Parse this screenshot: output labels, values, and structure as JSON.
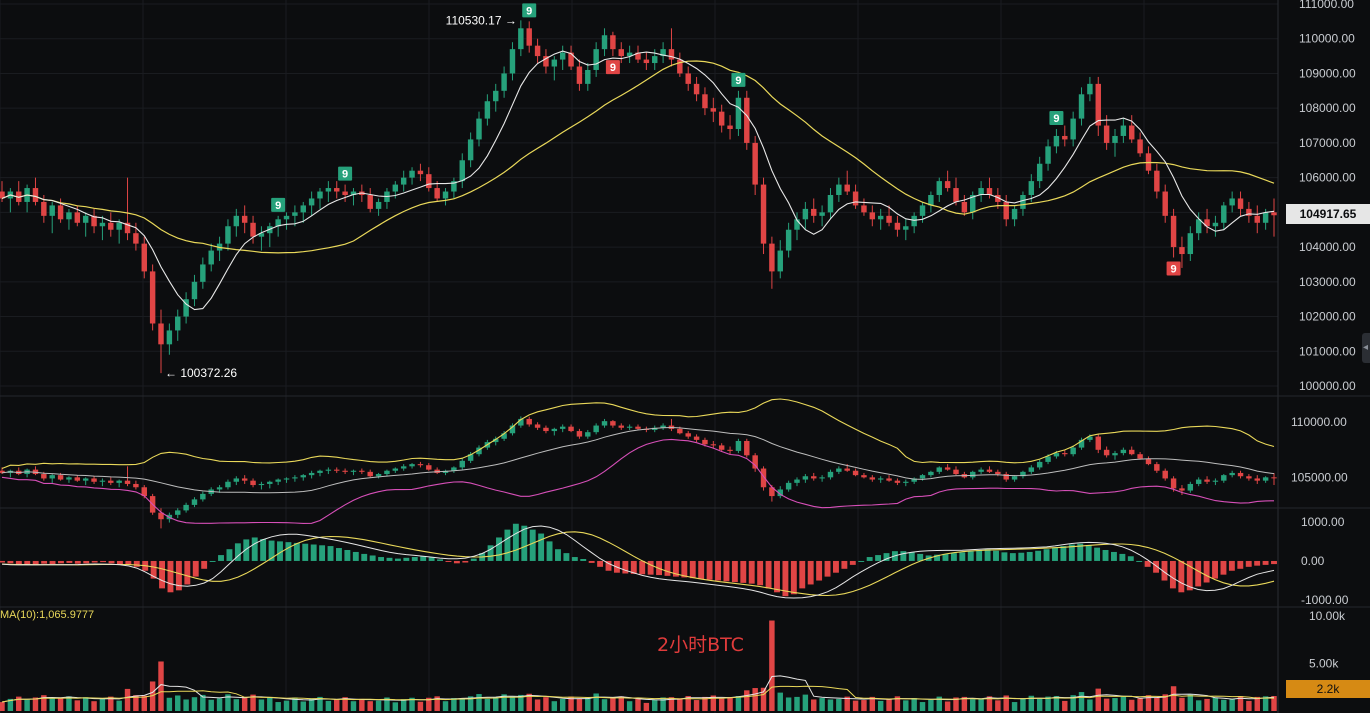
{
  "chart_data": {
    "type": "candlestick",
    "main": {
      "y_ticks": [
        "111000.00",
        "110000.00",
        "109000.00",
        "108000.00",
        "107000.00",
        "106000.00",
        "105000.00",
        "104000.00",
        "103000.00",
        "102000.00",
        "101000.00",
        "100000.00"
      ],
      "ylim": [
        99600,
        111200
      ],
      "last_price": "104917.65",
      "high_label": "110530.17",
      "low_label": "100372.26",
      "td_markers": [
        "9",
        "9",
        "9",
        "9",
        "9",
        "9",
        "9"
      ],
      "candles": [
        [
          105600,
          105900,
          105300,
          105400
        ],
        [
          105400,
          105700,
          105000,
          105600
        ],
        [
          105600,
          105900,
          105200,
          105300
        ],
        [
          105300,
          105800,
          105000,
          105700
        ],
        [
          105700,
          106000,
          105200,
          105300
        ],
        [
          105300,
          105500,
          104700,
          104900
        ],
        [
          104900,
          105300,
          104400,
          105200
        ],
        [
          105200,
          105400,
          104700,
          104800
        ],
        [
          104800,
          105100,
          104500,
          105000
        ],
        [
          105000,
          105200,
          104600,
          104700
        ],
        [
          104700,
          105000,
          104300,
          104900
        ],
        [
          104900,
          105100,
          104400,
          104600
        ],
        [
          104600,
          104900,
          104200,
          104700
        ],
        [
          104700,
          105000,
          104300,
          104500
        ],
        [
          104500,
          104800,
          104100,
          104700
        ],
        [
          104700,
          106000,
          104200,
          104400
        ],
        [
          104400,
          104700,
          103900,
          104100
        ],
        [
          104100,
          104300,
          103100,
          103300
        ],
        [
          103300,
          103500,
          101600,
          101800
        ],
        [
          101800,
          102200,
          100370,
          101200
        ],
        [
          101200,
          101800,
          100900,
          101600
        ],
        [
          101600,
          102200,
          101300,
          102000
        ],
        [
          102000,
          102700,
          101800,
          102500
        ],
        [
          102500,
          103200,
          102300,
          103000
        ],
        [
          103000,
          103700,
          102800,
          103500
        ],
        [
          103500,
          104100,
          103300,
          103900
        ],
        [
          103900,
          104300,
          103600,
          104100
        ],
        [
          104100,
          104800,
          103900,
          104600
        ],
        [
          104600,
          105100,
          104300,
          104900
        ],
        [
          104900,
          105200,
          104400,
          104700
        ],
        [
          104700,
          104900,
          104100,
          104300
        ],
        [
          104300,
          104600,
          103900,
          104400
        ],
        [
          104400,
          104700,
          104000,
          104600
        ],
        [
          104600,
          104900,
          104300,
          104800
        ],
        [
          104800,
          105000,
          104500,
          104900
        ],
        [
          104900,
          105200,
          104600,
          105000
        ],
        [
          105000,
          105300,
          104700,
          105200
        ],
        [
          105200,
          105600,
          104900,
          105400
        ],
        [
          105400,
          105700,
          105100,
          105600
        ],
        [
          105600,
          105900,
          105300,
          105700
        ],
        [
          105700,
          105900,
          105400,
          105600
        ],
        [
          105600,
          105800,
          105300,
          105500
        ],
        [
          105500,
          105700,
          105200,
          105600
        ],
        [
          105600,
          105800,
          105300,
          105500
        ],
        [
          105500,
          105700,
          105000,
          105100
        ],
        [
          105100,
          105400,
          104900,
          105300
        ],
        [
          105300,
          105700,
          105100,
          105600
        ],
        [
          105600,
          105900,
          105400,
          105800
        ],
        [
          105800,
          106200,
          105600,
          106000
        ],
        [
          106000,
          106300,
          105800,
          106200
        ],
        [
          106200,
          106400,
          105900,
          106100
        ],
        [
          106100,
          106300,
          105600,
          105700
        ],
        [
          105700,
          105900,
          105300,
          105400
        ],
        [
          105400,
          105700,
          105200,
          105600
        ],
        [
          105600,
          106000,
          105400,
          105900
        ],
        [
          105900,
          106700,
          105700,
          106500
        ],
        [
          106500,
          107300,
          106300,
          107100
        ],
        [
          107100,
          107900,
          106900,
          107700
        ],
        [
          107700,
          108400,
          107500,
          108200
        ],
        [
          108200,
          108700,
          107900,
          108500
        ],
        [
          108500,
          109200,
          108300,
          109000
        ],
        [
          109000,
          109900,
          108800,
          109700
        ],
        [
          109700,
          110530,
          109500,
          110300
        ],
        [
          110300,
          110500,
          109600,
          109800
        ],
        [
          109800,
          110000,
          109300,
          109500
        ],
        [
          109500,
          109700,
          109000,
          109200
        ],
        [
          109200,
          109500,
          108800,
          109400
        ],
        [
          109400,
          109800,
          109100,
          109600
        ],
        [
          109600,
          109800,
          109100,
          109200
        ],
        [
          109200,
          109400,
          108500,
          108700
        ],
        [
          108700,
          109300,
          108500,
          109100
        ],
        [
          109100,
          109900,
          108900,
          109700
        ],
        [
          109700,
          110300,
          109500,
          110100
        ],
        [
          110100,
          110200,
          109500,
          109700
        ],
        [
          109700,
          109900,
          109300,
          109500
        ],
        [
          109500,
          109800,
          109300,
          109600
        ],
        [
          109600,
          109800,
          109300,
          109400
        ],
        [
          109400,
          109600,
          109100,
          109300
        ],
        [
          109300,
          109700,
          109100,
          109500
        ],
        [
          109500,
          109900,
          109300,
          109700
        ],
        [
          109700,
          110300,
          109200,
          109400
        ],
        [
          109400,
          109600,
          108900,
          109000
        ],
        [
          109000,
          109200,
          108500,
          108700
        ],
        [
          108700,
          108900,
          108200,
          108400
        ],
        [
          108400,
          108600,
          107800,
          108000
        ],
        [
          108000,
          108300,
          107600,
          107900
        ],
        [
          107900,
          108100,
          107300,
          107500
        ],
        [
          107500,
          107800,
          107100,
          107400
        ],
        [
          107400,
          108500,
          107200,
          108300
        ],
        [
          108300,
          108500,
          106800,
          107000
        ],
        [
          107000,
          107200,
          105500,
          105800
        ],
        [
          105800,
          106000,
          103800,
          104100
        ],
        [
          104100,
          104300,
          102800,
          103300
        ],
        [
          103300,
          104200,
          103100,
          103900
        ],
        [
          103900,
          104700,
          103700,
          104500
        ],
        [
          104500,
          105000,
          104200,
          104800
        ],
        [
          104800,
          105300,
          104500,
          105100
        ],
        [
          105100,
          105400,
          104700,
          104900
        ],
        [
          104900,
          105200,
          104600,
          105000
        ],
        [
          105000,
          105700,
          104800,
          105500
        ],
        [
          105500,
          106000,
          105300,
          105800
        ],
        [
          105800,
          106200,
          105500,
          105600
        ],
        [
          105600,
          105800,
          105100,
          105200
        ],
        [
          105200,
          105400,
          104900,
          105000
        ],
        [
          105000,
          105200,
          104600,
          104800
        ],
        [
          104800,
          105100,
          104500,
          104900
        ],
        [
          104900,
          105200,
          104600,
          104700
        ],
        [
          104700,
          104900,
          104300,
          104500
        ],
        [
          104500,
          104800,
          104200,
          104600
        ],
        [
          104600,
          105000,
          104400,
          104900
        ],
        [
          104900,
          105300,
          104700,
          105200
        ],
        [
          105200,
          105600,
          105000,
          105500
        ],
        [
          105500,
          106000,
          105300,
          105900
        ],
        [
          105900,
          106200,
          105600,
          105700
        ],
        [
          105700,
          106000,
          105200,
          105300
        ],
        [
          105300,
          105500,
          104900,
          105000
        ],
        [
          105000,
          105600,
          104800,
          105500
        ],
        [
          105500,
          105900,
          105300,
          105700
        ],
        [
          105700,
          106000,
          105400,
          105500
        ],
        [
          105500,
          105700,
          105100,
          105300
        ],
        [
          105300,
          105500,
          104600,
          104800
        ],
        [
          104800,
          105200,
          104600,
          105100
        ],
        [
          105100,
          105600,
          104900,
          105500
        ],
        [
          105500,
          106100,
          105300,
          105900
        ],
        [
          105900,
          106600,
          105700,
          106400
        ],
        [
          106400,
          107100,
          106200,
          106900
        ],
        [
          106900,
          107400,
          106700,
          107200
        ],
        [
          107200,
          107500,
          106900,
          107100
        ],
        [
          107100,
          107900,
          106900,
          107700
        ],
        [
          107700,
          108600,
          107500,
          108400
        ],
        [
          108400,
          108900,
          108200,
          108700
        ],
        [
          108700,
          108900,
          107200,
          107500
        ],
        [
          107500,
          107800,
          106800,
          107000
        ],
        [
          107000,
          107400,
          106600,
          107200
        ],
        [
          107200,
          107700,
          107000,
          107500
        ],
        [
          107500,
          107800,
          107000,
          107100
        ],
        [
          107100,
          107300,
          106600,
          106700
        ],
        [
          106700,
          106900,
          106100,
          106200
        ],
        [
          106200,
          106400,
          105400,
          105600
        ],
        [
          105600,
          105800,
          104700,
          104900
        ],
        [
          104900,
          105100,
          103700,
          104000
        ],
        [
          104000,
          104300,
          103400,
          103800
        ],
        [
          103800,
          104600,
          103600,
          104400
        ],
        [
          104400,
          105000,
          104200,
          104800
        ],
        [
          104800,
          105100,
          104400,
          104600
        ],
        [
          104600,
          104900,
          104300,
          104700
        ],
        [
          104700,
          105300,
          104500,
          105200
        ],
        [
          105200,
          105600,
          105000,
          105400
        ],
        [
          105400,
          105600,
          104900,
          105100
        ],
        [
          105100,
          105300,
          104700,
          104900
        ],
        [
          104900,
          105200,
          104400,
          104700
        ],
        [
          104700,
          105100,
          104500,
          105000
        ],
        [
          105000,
          105400,
          104300,
          104917
        ]
      ],
      "ma_white_last": 104900,
      "ma_yellow_last": 106000
    },
    "bollinger": {
      "y_ticks": [
        "110000.00",
        "105000.00"
      ],
      "ylim": [
        102400,
        112200
      ]
    },
    "macd": {
      "y_ticks": [
        "1000.00",
        "0.00",
        "-1000.00"
      ],
      "ylim": [
        -1150,
        1250
      ],
      "hist": [
        -40,
        -60,
        -80,
        -100,
        -90,
        -70,
        -80,
        -60,
        -50,
        -70,
        -60,
        -40,
        -30,
        -60,
        -80,
        -100,
        -150,
        -250,
        -450,
        -700,
        -800,
        -750,
        -600,
        -400,
        -200,
        0,
        150,
        300,
        450,
        550,
        600,
        560,
        520,
        500,
        480,
        460,
        440,
        420,
        400,
        380,
        330,
        280,
        230,
        180,
        140,
        100,
        80,
        60,
        80,
        100,
        120,
        90,
        40,
        -20,
        -60,
        -40,
        60,
        200,
        400,
        600,
        800,
        950,
        900,
        800,
        700,
        500,
        300,
        200,
        100,
        50,
        -50,
        -150,
        -250,
        -300,
        -320,
        -330,
        -340,
        -350,
        -360,
        -380,
        -400,
        -420,
        -440,
        -460,
        -480,
        -500,
        -520,
        -540,
        -560,
        -580,
        -620,
        -700,
        -800,
        -900,
        -850,
        -700,
        -600,
        -500,
        -400,
        -300,
        -200,
        -100,
        0,
        100,
        150,
        200,
        250,
        250,
        220,
        180,
        140,
        160,
        180,
        200,
        220,
        250,
        280,
        300,
        260,
        220,
        200,
        210,
        230,
        260,
        300,
        340,
        380,
        420,
        440,
        400,
        340,
        280,
        230,
        180,
        120,
        0,
        -150,
        -300,
        -500,
        -700,
        -800,
        -750,
        -650,
        -550,
        -450,
        -350,
        -250,
        -200,
        -150,
        -120,
        -100,
        -80
      ],
      "dif_last": -400,
      "dea_last": -300
    },
    "volume": {
      "label": "MA(10):1,065.9777",
      "y_ticks": [
        "10.00k",
        "5.00k"
      ],
      "ylim": [
        0,
        10500
      ],
      "last_volume": "2.2k",
      "watermark": "2小时BTC"
    },
    "colors": {
      "up": "#26a17b",
      "down": "#e04545",
      "ma_fast": "#e8e8e8",
      "ma_slow": "#e9d85a",
      "boll_lower": "#d64fb8"
    }
  },
  "icons": {
    "scroll_tab": "chevron-left-icon"
  }
}
